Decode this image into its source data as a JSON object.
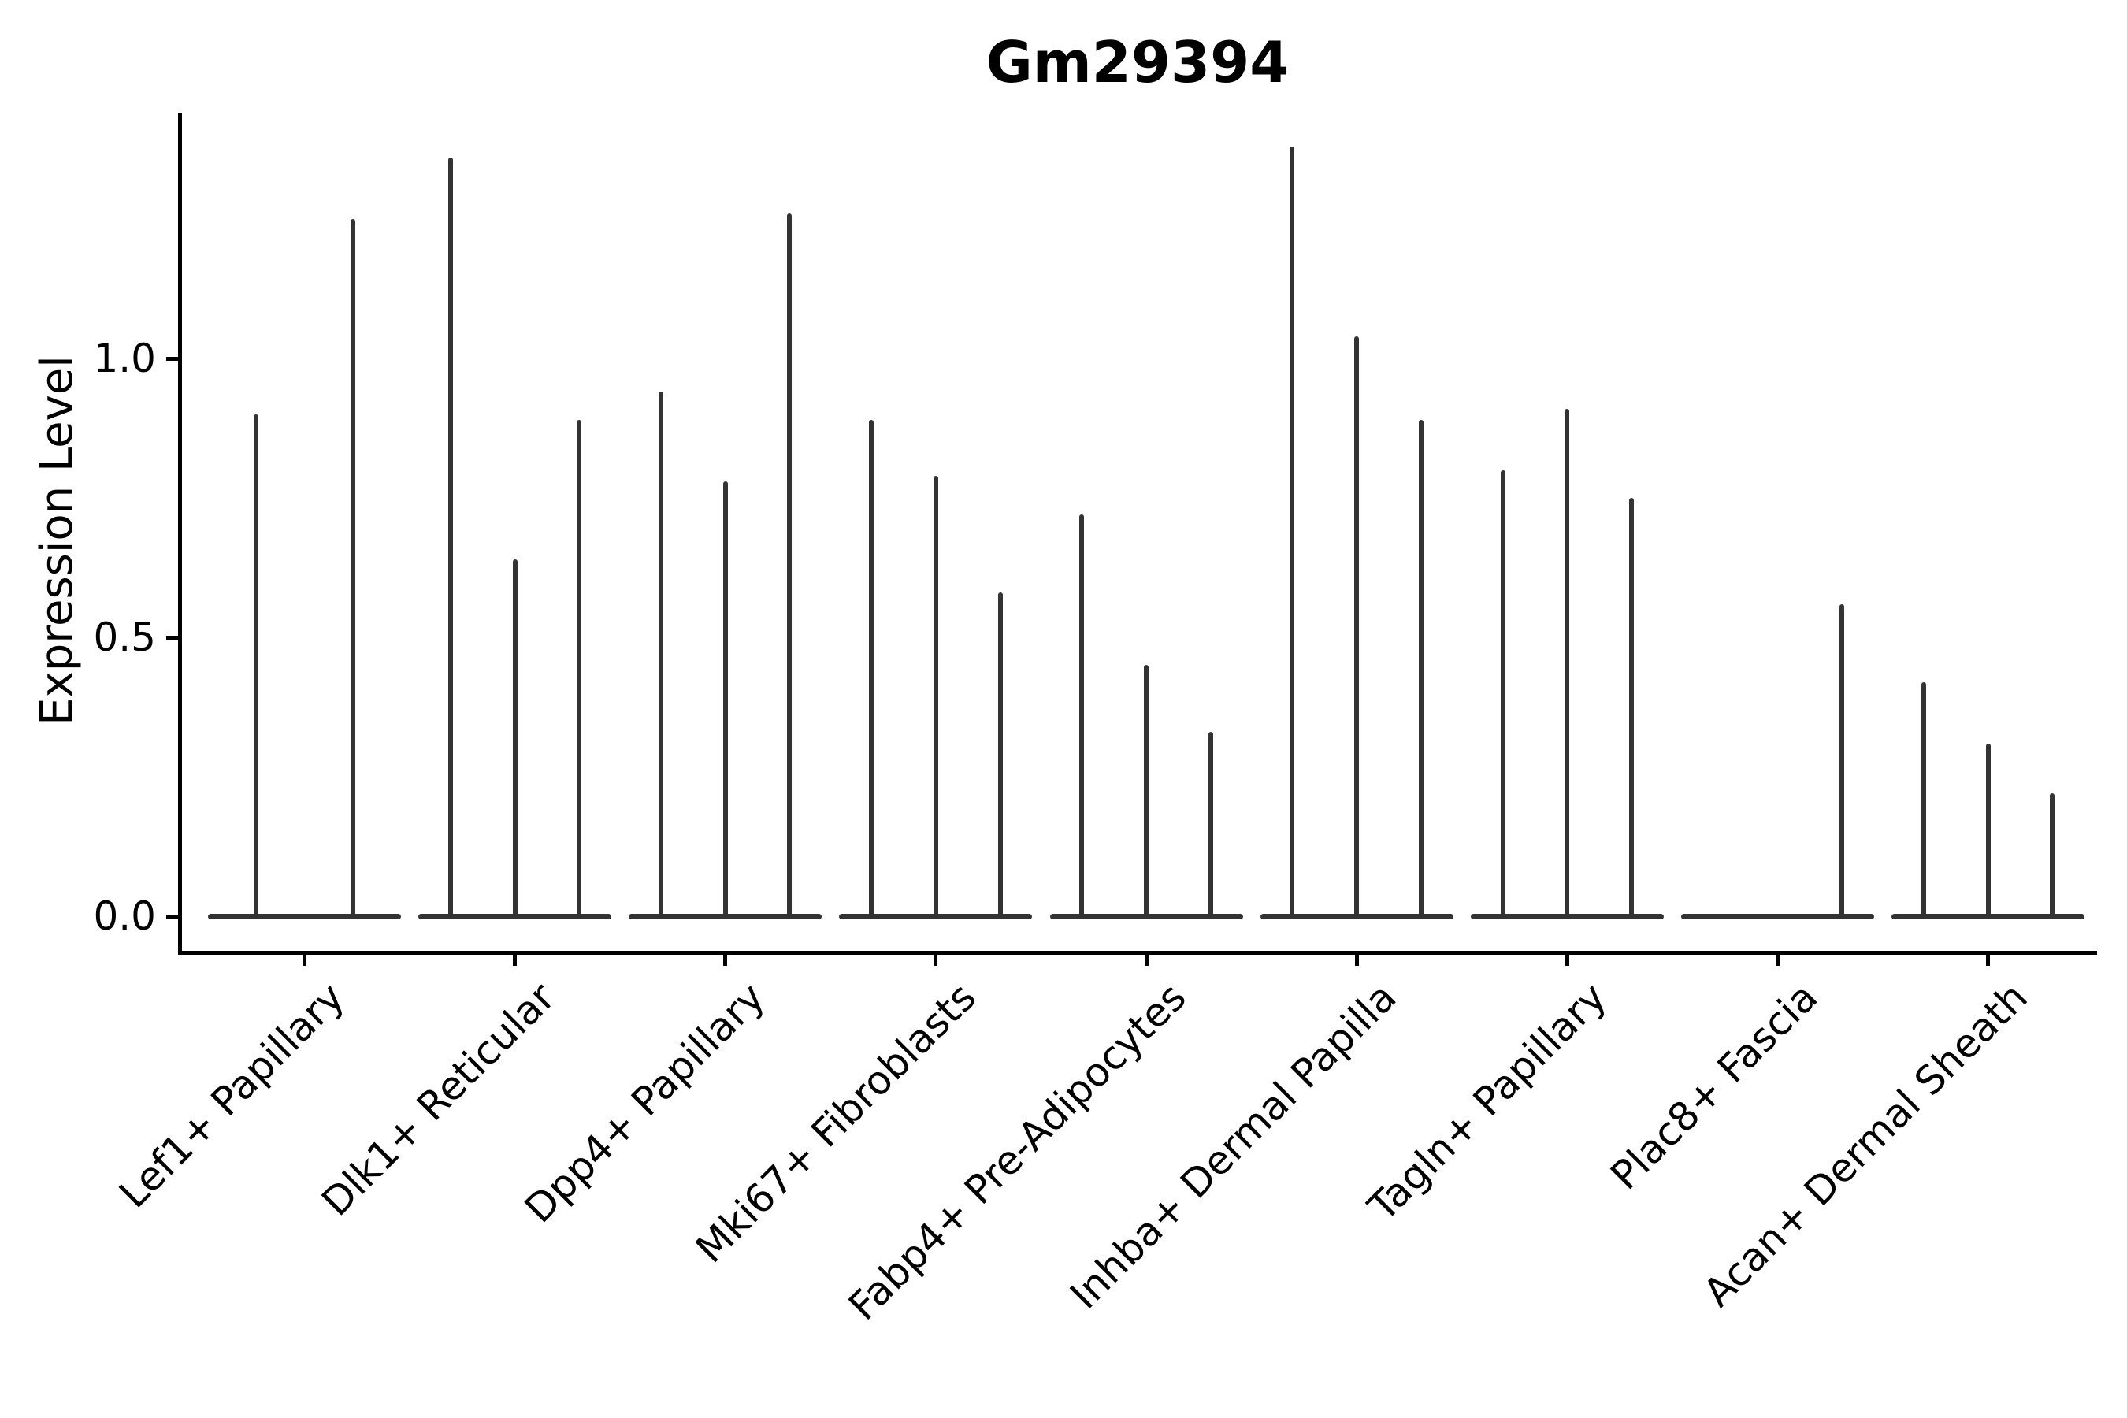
{
  "figure": {
    "background": "#ffffff"
  },
  "colors": {
    "violin": "#333333",
    "axis": "#000000",
    "text": "#000000"
  },
  "chart_data": {
    "type": "violin",
    "title": "Gm29394",
    "ylabel": "Expression Level",
    "xlabel": "",
    "ylim": [
      0,
      1.45
    ],
    "grid": false,
    "legend": "none",
    "spines": [
      "left",
      "bottom"
    ],
    "ytick_labels": [
      "0.0",
      "0.5",
      "1.0"
    ],
    "ytick_values": [
      0.0,
      0.5,
      1.0
    ],
    "xtick_rotation_deg": 45,
    "note": "needle-thin violins collapsed at 0 with sparse high-expression spikes; per-category violin counts differ",
    "categories": [
      "Lef1+ Papillary",
      "Dlk1+ Reticular",
      "Dpp4+ Papillary",
      "Mki67+ Fibroblasts",
      "Fabp4+ Pre-Adipocytes",
      "Inhba+ Dermal Papilla",
      "Tagln+ Papillary",
      "Plac8+ Fascia",
      "Acan+ Dermal Sheath"
    ],
    "series": [
      {
        "category": "Lef1+ Papillary",
        "violin_max_values": [
          0.9,
          1.25
        ]
      },
      {
        "category": "Dlk1+ Reticular",
        "violin_max_values": [
          1.36,
          0.64,
          0.89
        ]
      },
      {
        "category": "Dpp4+ Papillary",
        "violin_max_values": [
          0.94,
          0.78,
          1.26
        ]
      },
      {
        "category": "Mki67+ Fibroblasts",
        "violin_max_values": [
          0.89,
          0.79,
          0.58
        ]
      },
      {
        "category": "Fabp4+ Pre-Adipocytes",
        "violin_max_values": [
          0.72,
          0.45,
          0.33
        ]
      },
      {
        "category": "Inhba+ Dermal Papilla",
        "violin_max_values": [
          1.38,
          1.04,
          0.89
        ]
      },
      {
        "category": "Tagln+ Papillary",
        "violin_max_values": [
          0.8,
          0.91,
          0.75
        ]
      },
      {
        "category": "Plac8+ Fascia",
        "violin_max_values": [
          0.0,
          0.0,
          0.56
        ]
      },
      {
        "category": "Acan+ Dermal Sheath",
        "violin_max_values": [
          0.42,
          0.31,
          0.22
        ]
      }
    ]
  }
}
